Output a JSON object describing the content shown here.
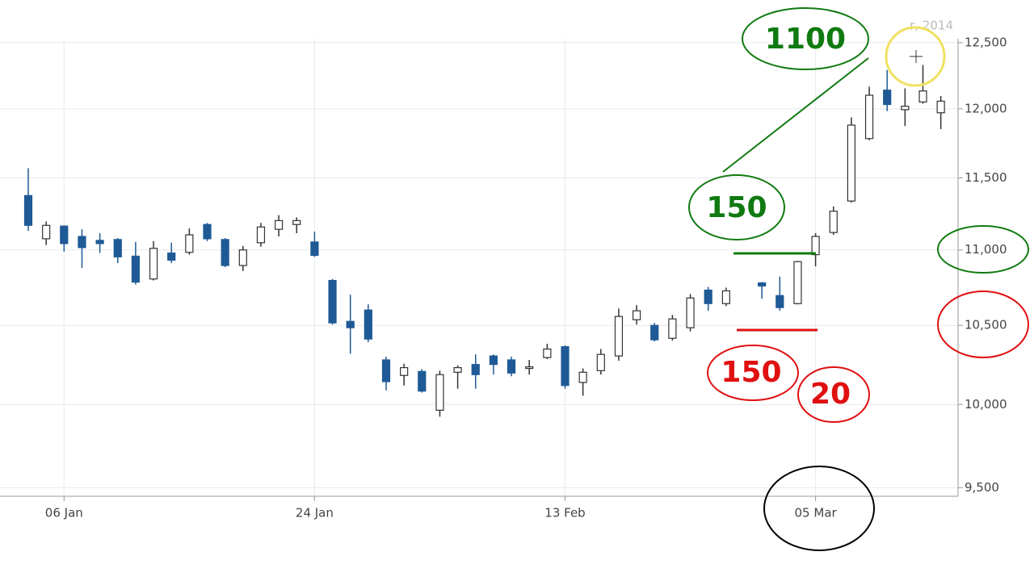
{
  "chart_data": {
    "type": "candlestick",
    "log_scale": true,
    "grid": true,
    "corner_text": "r, 2014",
    "categories": [
      null,
      null,
      "06 Jan",
      null,
      null,
      null,
      null,
      null,
      null,
      null,
      null,
      null,
      null,
      null,
      null,
      null,
      "24 Jan",
      null,
      null,
      null,
      null,
      null,
      null,
      null,
      null,
      null,
      null,
      null,
      null,
      null,
      "13 Feb",
      null,
      null,
      null,
      null,
      null,
      null,
      null,
      null,
      null,
      null,
      null,
      null,
      null,
      "05 Mar",
      null,
      null,
      null,
      null,
      null,
      null,
      null
    ],
    "series": [
      {
        "up_color": "#ffffff",
        "down_color": "#1f5a96",
        "open": [
          11375,
          11076,
          11163,
          11092,
          11065,
          11071,
          10958,
          10805,
          10979,
          10984,
          11174,
          11071,
          10895,
          11049,
          11141,
          11174,
          11054,
          10795,
          10526,
          10600,
          10279,
          10181,
          10206,
          9965,
          10201,
          10250,
          10304,
          10279,
          10225,
          10294,
          10363,
          10137,
          10211,
          10304,
          10537,
          10500,
          10417,
          10485,
          10731,
          10642,
          null,
          10779,
          10695,
          10642,
          10968,
          11119,
          11337,
          11782,
          12139,
          11994,
          12051,
          11971
        ],
        "high": [
          11569,
          11195,
          11168,
          11141,
          11114,
          11081,
          11054,
          11060,
          11049,
          11147,
          11185,
          11081,
          11027,
          11185,
          11239,
          11223,
          11125,
          10805,
          10700,
          10637,
          10299,
          10255,
          10221,
          10211,
          10245,
          10314,
          10314,
          10299,
          10279,
          10382,
          10372,
          10225,
          10348,
          10610,
          10632,
          10516,
          10568,
          10705,
          10752,
          10747,
          null,
          10784,
          10821,
          10926,
          11114,
          11299,
          11937,
          12165,
          12291,
          12152,
          12329,
          12095
        ],
        "low": [
          11130,
          11033,
          10989,
          10879,
          10979,
          10911,
          10768,
          10795,
          10911,
          10968,
          11060,
          10884,
          10858,
          11022,
          11092,
          11114,
          10953,
          10505,
          10318,
          10392,
          10088,
          10118,
          10074,
          9925,
          10098,
          10098,
          10186,
          10176,
          10186,
          10284,
          10098,
          10054,
          10186,
          10274,
          10505,
          10397,
          10402,
          10461,
          10595,
          10626,
          null,
          10674,
          10595,
          10637,
          10889,
          11103,
          11326,
          11770,
          11983,
          11873,
          12038,
          11851
        ],
        "close": [
          11168,
          11168,
          11043,
          11016,
          11043,
          10953,
          10784,
          11011,
          10931,
          11103,
          11076,
          10895,
          11000,
          11157,
          11201,
          11201,
          10963,
          10516,
          10485,
          10412,
          10142,
          10230,
          10083,
          10186,
          10230,
          10186,
          10250,
          10196,
          10235,
          10348,
          10118,
          10201,
          10314,
          10558,
          10595,
          10407,
          10542,
          10679,
          10642,
          10726,
          null,
          10758,
          10616,
          10921,
          11092,
          11266,
          11880,
          12101,
          12032,
          12019,
          12133,
          12057
        ]
      }
    ],
    "ylim": [
      9450,
      12530
    ],
    "yticks": [
      {
        "value": 9500,
        "label": "9,500"
      },
      {
        "value": 10000,
        "label": "10,000"
      },
      {
        "value": 10500,
        "label": "10,500"
      },
      {
        "value": 11000,
        "label": "11,000"
      },
      {
        "value": 11500,
        "label": "11,500"
      },
      {
        "value": 12000,
        "label": "12,000"
      },
      {
        "value": 12500,
        "label": "12,500"
      }
    ],
    "annotations": [
      "1100",
      "150",
      "150",
      "20"
    ]
  }
}
